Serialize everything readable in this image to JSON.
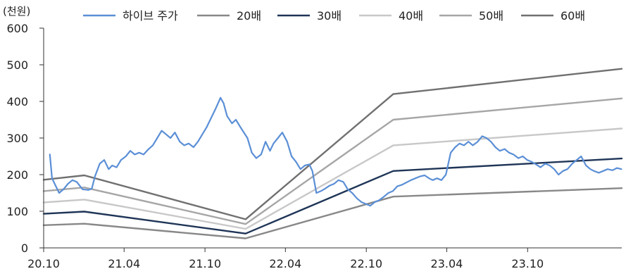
{
  "chart_data": {
    "type": "line",
    "unit_label": "(천원)",
    "ylim": [
      0,
      600
    ],
    "y_ticks": [
      0,
      100,
      200,
      300,
      400,
      500,
      600
    ],
    "x_ticks": [
      "20.10",
      "21.04",
      "21.10",
      "22.04",
      "22.10",
      "23.04",
      "23.10"
    ],
    "xlim": [
      "2020-10",
      "2024-05"
    ],
    "grid": false,
    "legend_position": "top",
    "series": [
      {
        "name": "하이브 주가",
        "color": "#5b8fd6",
        "points": [
          [
            "2020-10-15",
            255
          ],
          [
            "2020-10-20",
            190
          ],
          [
            "2020-10-28",
            170
          ],
          [
            "2020-11-05",
            150
          ],
          [
            "2020-11-15",
            160
          ],
          [
            "2020-11-25",
            175
          ],
          [
            "2020-12-05",
            185
          ],
          [
            "2020-12-15",
            180
          ],
          [
            "2020-12-28",
            160
          ],
          [
            "2021-01-10",
            158
          ],
          [
            "2021-01-18",
            162
          ],
          [
            "2021-01-25",
            195
          ],
          [
            "2021-02-05",
            230
          ],
          [
            "2021-02-15",
            240
          ],
          [
            "2021-02-25",
            215
          ],
          [
            "2021-03-05",
            225
          ],
          [
            "2021-03-15",
            220
          ],
          [
            "2021-03-25",
            240
          ],
          [
            "2021-04-05",
            250
          ],
          [
            "2021-04-15",
            265
          ],
          [
            "2021-04-25",
            255
          ],
          [
            "2021-05-05",
            260
          ],
          [
            "2021-05-15",
            255
          ],
          [
            "2021-05-25",
            268
          ],
          [
            "2021-06-05",
            280
          ],
          [
            "2021-06-15",
            300
          ],
          [
            "2021-06-25",
            320
          ],
          [
            "2021-07-05",
            310
          ],
          [
            "2021-07-15",
            300
          ],
          [
            "2021-07-25",
            315
          ],
          [
            "2021-08-05",
            290
          ],
          [
            "2021-08-15",
            280
          ],
          [
            "2021-08-25",
            285
          ],
          [
            "2021-09-05",
            275
          ],
          [
            "2021-09-15",
            290
          ],
          [
            "2021-09-25",
            310
          ],
          [
            "2021-10-05",
            330
          ],
          [
            "2021-10-15",
            355
          ],
          [
            "2021-10-25",
            380
          ],
          [
            "2021-11-05",
            410
          ],
          [
            "2021-11-12",
            395
          ],
          [
            "2021-11-20",
            360
          ],
          [
            "2021-12-01",
            340
          ],
          [
            "2021-12-10",
            350
          ],
          [
            "2021-12-20",
            330
          ],
          [
            "2022-01-05",
            300
          ],
          [
            "2022-01-15",
            260
          ],
          [
            "2022-01-25",
            245
          ],
          [
            "2022-02-05",
            255
          ],
          [
            "2022-02-15",
            290
          ],
          [
            "2022-02-25",
            265
          ],
          [
            "2022-03-05",
            285
          ],
          [
            "2022-03-15",
            300
          ],
          [
            "2022-03-25",
            315
          ],
          [
            "2022-04-05",
            290
          ],
          [
            "2022-04-15",
            250
          ],
          [
            "2022-04-25",
            235
          ],
          [
            "2022-05-05",
            215
          ],
          [
            "2022-05-15",
            225
          ],
          [
            "2022-05-25",
            228
          ],
          [
            "2022-06-01",
            210
          ],
          [
            "2022-06-10",
            150
          ],
          [
            "2022-06-20",
            155
          ],
          [
            "2022-06-30",
            162
          ],
          [
            "2022-07-10",
            170
          ],
          [
            "2022-07-20",
            175
          ],
          [
            "2022-07-30",
            185
          ],
          [
            "2022-08-10",
            180
          ],
          [
            "2022-08-20",
            160
          ],
          [
            "2022-08-30",
            150
          ],
          [
            "2022-09-10",
            135
          ],
          [
            "2022-09-20",
            125
          ],
          [
            "2022-09-30",
            120
          ],
          [
            "2022-10-10",
            115
          ],
          [
            "2022-10-20",
            125
          ],
          [
            "2022-10-30",
            130
          ],
          [
            "2022-11-10",
            140
          ],
          [
            "2022-11-20",
            150
          ],
          [
            "2022-11-30",
            155
          ],
          [
            "2022-12-10",
            168
          ],
          [
            "2022-12-20",
            172
          ],
          [
            "2022-12-30",
            178
          ],
          [
            "2023-01-10",
            185
          ],
          [
            "2023-01-20",
            190
          ],
          [
            "2023-01-30",
            195
          ],
          [
            "2023-02-10",
            198
          ],
          [
            "2023-02-20",
            190
          ],
          [
            "2023-02-28",
            185
          ],
          [
            "2023-03-10",
            190
          ],
          [
            "2023-03-20",
            185
          ],
          [
            "2023-03-30",
            200
          ],
          [
            "2023-04-10",
            260
          ],
          [
            "2023-04-20",
            275
          ],
          [
            "2023-04-30",
            285
          ],
          [
            "2023-05-10",
            280
          ],
          [
            "2023-05-20",
            290
          ],
          [
            "2023-05-30",
            280
          ],
          [
            "2023-06-10",
            290
          ],
          [
            "2023-06-20",
            305
          ],
          [
            "2023-06-30",
            300
          ],
          [
            "2023-07-10",
            290
          ],
          [
            "2023-07-20",
            275
          ],
          [
            "2023-07-30",
            265
          ],
          [
            "2023-08-10",
            270
          ],
          [
            "2023-08-20",
            260
          ],
          [
            "2023-08-30",
            255
          ],
          [
            "2023-09-10",
            245
          ],
          [
            "2023-09-20",
            250
          ],
          [
            "2023-09-30",
            240
          ],
          [
            "2023-10-10",
            235
          ],
          [
            "2023-10-20",
            228
          ],
          [
            "2023-10-30",
            220
          ],
          [
            "2023-11-10",
            230
          ],
          [
            "2023-11-20",
            225
          ],
          [
            "2023-11-30",
            215
          ],
          [
            "2023-12-10",
            200
          ],
          [
            "2023-12-20",
            210
          ],
          [
            "2023-12-30",
            215
          ],
          [
            "2024-01-10",
            230
          ],
          [
            "2024-01-20",
            240
          ],
          [
            "2024-01-30",
            250
          ],
          [
            "2024-02-10",
            225
          ],
          [
            "2024-02-20",
            215
          ],
          [
            "2024-02-28",
            210
          ],
          [
            "2024-03-10",
            205
          ],
          [
            "2024-03-20",
            210
          ],
          [
            "2024-03-30",
            215
          ],
          [
            "2024-04-10",
            212
          ],
          [
            "2024-04-20",
            218
          ],
          [
            "2024-04-30",
            215
          ]
        ]
      },
      {
        "name": "20배",
        "color": "#888888",
        "points": [
          [
            "2020-10-01",
            62
          ],
          [
            "2021-01-01",
            66
          ],
          [
            "2022-01-01",
            26
          ],
          [
            "2022-12-01",
            140
          ],
          [
            "2024-05-01",
            163
          ]
        ]
      },
      {
        "name": "30배",
        "color": "#1f3557",
        "points": [
          [
            "2020-10-01",
            93
          ],
          [
            "2021-01-01",
            99
          ],
          [
            "2022-01-01",
            39
          ],
          [
            "2022-12-01",
            210
          ],
          [
            "2024-05-01",
            244
          ]
        ]
      },
      {
        "name": "40배",
        "color": "#c8c8c8",
        "points": [
          [
            "2020-10-01",
            124
          ],
          [
            "2021-01-01",
            132
          ],
          [
            "2022-01-01",
            52
          ],
          [
            "2022-12-01",
            280
          ],
          [
            "2024-05-01",
            326
          ]
        ]
      },
      {
        "name": "50배",
        "color": "#a6a6a6",
        "points": [
          [
            "2020-10-01",
            155
          ],
          [
            "2021-01-01",
            165
          ],
          [
            "2022-01-01",
            65
          ],
          [
            "2022-12-01",
            350
          ],
          [
            "2024-05-01",
            408
          ]
        ]
      },
      {
        "name": "60배",
        "color": "#707070",
        "points": [
          [
            "2020-10-01",
            186
          ],
          [
            "2021-01-01",
            198
          ],
          [
            "2022-01-01",
            78
          ],
          [
            "2022-12-01",
            420
          ],
          [
            "2024-05-01",
            489
          ]
        ]
      }
    ]
  }
}
